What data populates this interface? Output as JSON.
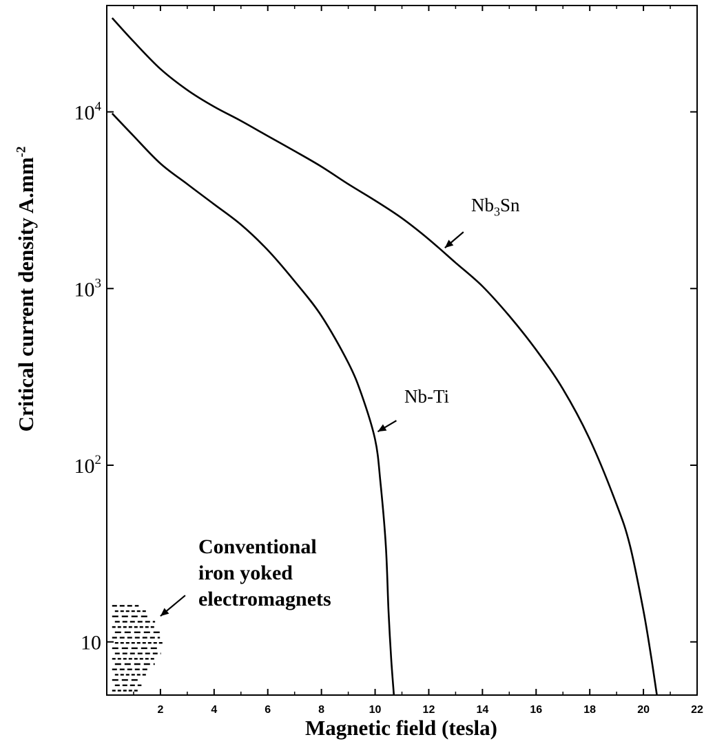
{
  "chart_data": {
    "type": "line",
    "xlabel": "Magnetic field (tesla)",
    "ylabel_text": "Critical current density A.mm",
    "ylabel_superscript": "-2",
    "xlim": [
      0,
      22
    ],
    "ylim": [
      5,
      40000
    ],
    "yscale": "log",
    "x_ticks": [
      2,
      4,
      6,
      8,
      10,
      12,
      14,
      16,
      18,
      20,
      22
    ],
    "y_ticks": [
      {
        "value": 10,
        "base": "10",
        "exp": ""
      },
      {
        "value": 100,
        "base": "10",
        "exp": "2"
      },
      {
        "value": 1000,
        "base": "10",
        "exp": "3"
      },
      {
        "value": 10000,
        "base": "10",
        "exp": "4"
      }
    ],
    "grid": false,
    "series": [
      {
        "name": "Nb3Sn",
        "x": [
          0.2,
          1,
          2,
          3,
          4,
          5,
          6,
          7,
          8,
          9,
          10,
          11,
          12,
          13,
          14,
          15,
          16,
          17,
          18,
          19,
          19.5,
          20,
          20.3,
          20.5
        ],
        "y": [
          34000,
          25000,
          17500,
          13300,
          10700,
          8900,
          7300,
          6000,
          4900,
          3900,
          3150,
          2500,
          1900,
          1400,
          1030,
          700,
          450,
          270,
          140,
          60,
          35,
          15,
          8,
          5
        ]
      },
      {
        "name": "Nb-Ti",
        "x": [
          0.2,
          1,
          2,
          3,
          4,
          5,
          6,
          7,
          8,
          9,
          9.5,
          10,
          10.2,
          10.4,
          10.5,
          10.6,
          10.7
        ],
        "y": [
          9800,
          7300,
          5100,
          3900,
          3000,
          2300,
          1650,
          1100,
          700,
          380,
          250,
          140,
          80,
          35,
          15,
          8,
          5
        ]
      }
    ],
    "annotations": [
      {
        "id": "nb3sn",
        "text": "Nb",
        "sub": "3",
        "text2": "Sn",
        "arrow_x": 12.6,
        "arrow_y": 1700
      },
      {
        "id": "nbti",
        "text": "Nb-Ti",
        "arrow_x": 10.1,
        "arrow_y": 155
      },
      {
        "id": "conventional",
        "lines": [
          "Conventional",
          "iron yoked",
          "electromagnets"
        ],
        "arrow_x": 2.0,
        "arrow_y": 14
      }
    ],
    "region": {
      "name": "conventional-electromagnets",
      "x_range": [
        0.2,
        2.0
      ],
      "y_range": [
        5.3,
        16
      ]
    }
  }
}
